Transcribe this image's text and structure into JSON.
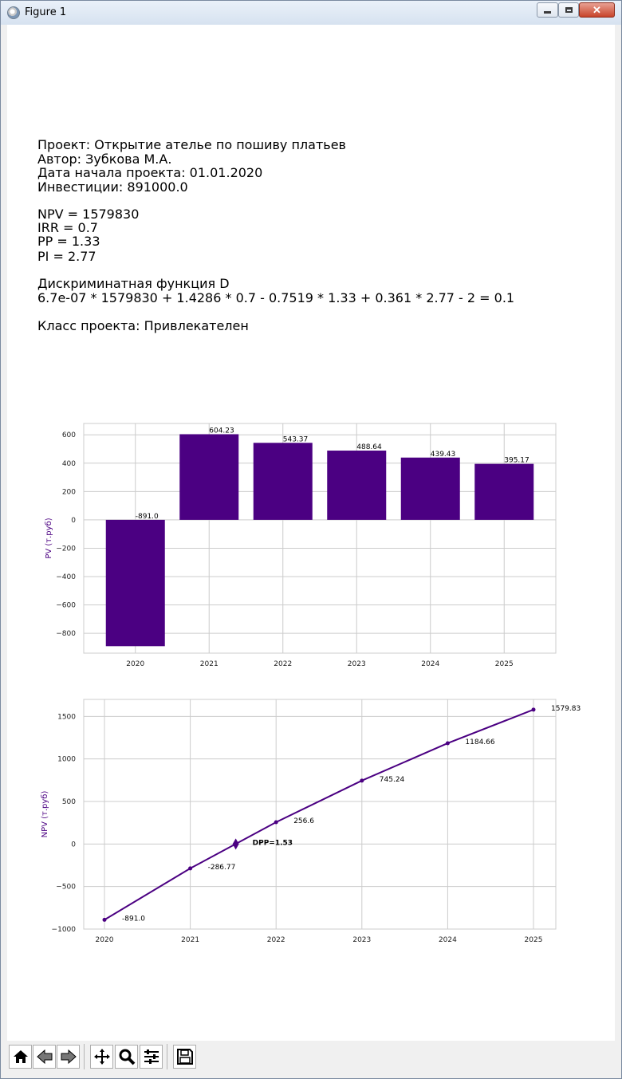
{
  "window": {
    "title": "Figure 1",
    "close_glyph": "✕"
  },
  "report": {
    "project_line": "Проект: Открытие ателье по пошиву платьев",
    "author_line": "Автор: Зубкова М.А.",
    "date_line": "Дата начала проекта: 01.01.2020",
    "investment_line": "Инвестиции: 891000.0",
    "npv_line": "NPV = 1579830",
    "irr_line": "IRR = 0.7",
    "pp_line": "PP = 1.33",
    "pi_line": "PI = 2.77",
    "discriminant_title": "Дискриминатная функция D",
    "discriminant_formula": "6.7e-07 * 1579830 + 1.4286 * 0.7 - 0.7519 * 1.33 + 0.361 * 2.77 - 2 = 0.1",
    "class_line": "Класс проекта: Привлекателен"
  },
  "chart_data": [
    {
      "type": "bar",
      "categories": [
        "2020",
        "2021",
        "2022",
        "2023",
        "2024",
        "2025"
      ],
      "values": [
        -891.0,
        604.23,
        543.37,
        488.64,
        439.43,
        395.17
      ],
      "data_labels": [
        "-891.0",
        "604.23",
        "543.37",
        "488.64",
        "439.43",
        "395.17"
      ],
      "ylabel": "PV (т.руб)",
      "ylim": [
        -940,
        680
      ],
      "yticks": [
        600,
        400,
        200,
        0,
        -200,
        -400,
        -600,
        -800
      ],
      "ytick_labels": [
        "600",
        "400",
        "200",
        "0",
        "−200",
        "−400",
        "−600",
        "−800"
      ],
      "grid": true,
      "bar_color": "#4b0082",
      "ylabel_color": "#4b0082"
    },
    {
      "type": "line",
      "categories": [
        "2020",
        "2021",
        "2022",
        "2023",
        "2024",
        "2025"
      ],
      "x": [
        2020,
        2021,
        2022,
        2023,
        2024,
        2025
      ],
      "values": [
        -891.0,
        -286.77,
        256.6,
        745.24,
        1184.66,
        1579.83
      ],
      "data_labels": [
        "-891.0",
        "-286.77",
        "256.6",
        "745.24",
        "1184.66",
        "1579.83"
      ],
      "ylabel": "NPV (т.руб)",
      "ylim": [
        -1000,
        1700
      ],
      "yticks": [
        1500,
        1000,
        500,
        0,
        -500,
        -1000
      ],
      "ytick_labels": [
        "1500",
        "1000",
        "500",
        "0",
        "−500",
        "−1000"
      ],
      "grid": true,
      "line_color": "#4b0082",
      "ylabel_color": "#4b0082",
      "annotation": {
        "x": 2021.53,
        "y": 0,
        "text": "DPP=1.53"
      }
    }
  ],
  "toolbar": {
    "items": [
      "home-icon",
      "back-icon",
      "forward-icon",
      "pan-icon",
      "zoom-icon",
      "configure-subplots-icon",
      "save-icon"
    ]
  }
}
